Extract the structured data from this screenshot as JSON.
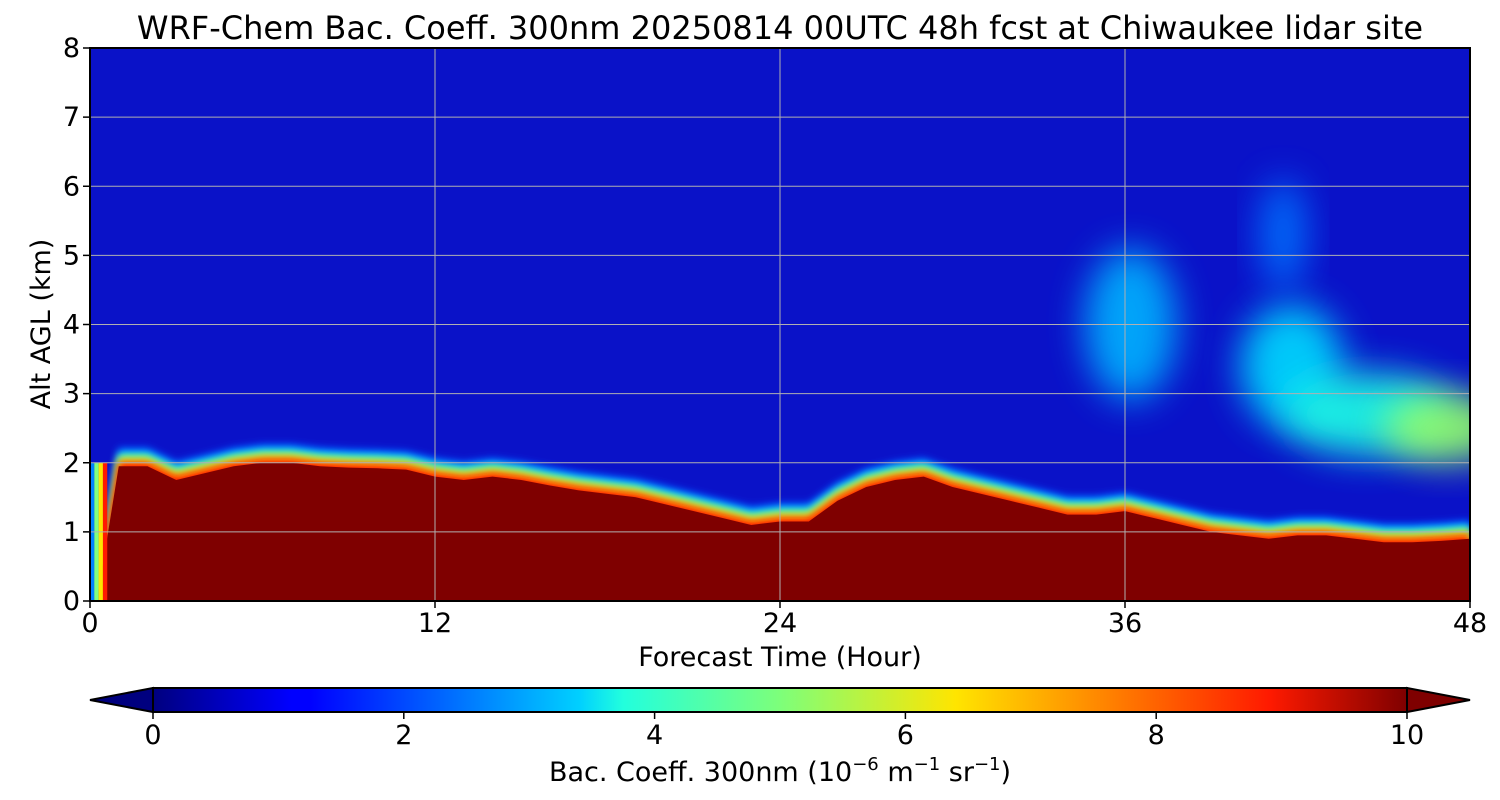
{
  "chart_data": {
    "type": "heatmap",
    "title": "WRF-Chem Bac. Coeff. 300nm  20250814 00UTC 48h fcst at Chiwaukee lidar site",
    "xlabel": "Forecast Time (Hour)",
    "ylabel": "Alt AGL (km)",
    "xlim": [
      0,
      48
    ],
    "ylim": [
      0,
      8
    ],
    "x_ticks": [
      "0",
      "12",
      "24",
      "36",
      "48"
    ],
    "y_ticks": [
      "0",
      "1",
      "2",
      "3",
      "4",
      "5",
      "6",
      "7",
      "8"
    ],
    "grid": true,
    "colormap": "jet",
    "colorbar": {
      "label_prefix": "Bac. Coeff. 300nm  (10",
      "label_exp1": "−6",
      "label_mid": " m",
      "label_exp2": "−1",
      "label_mid2": " sr",
      "label_exp3": "−1",
      "label_suffix": ")",
      "range": [
        0,
        10
      ],
      "ticks": [
        "0",
        "2",
        "4",
        "6",
        "8",
        "10"
      ],
      "extend": "both"
    },
    "boundary_layer_top_km": {
      "hours": [
        0.3,
        1,
        2,
        3,
        4,
        5,
        6,
        7,
        8,
        9,
        10,
        11,
        12,
        13,
        14,
        15,
        16,
        17,
        18,
        19,
        20,
        21,
        22,
        23,
        24,
        25,
        26,
        27,
        28,
        29,
        30,
        31,
        32,
        33,
        34,
        35,
        36,
        37,
        38,
        39,
        40,
        41,
        42,
        43,
        44,
        45,
        46,
        47,
        48
      ],
      "values": [
        0.2,
        2.0,
        2.0,
        1.8,
        1.9,
        2.0,
        2.05,
        2.05,
        2.0,
        1.98,
        1.97,
        1.95,
        1.85,
        1.8,
        1.85,
        1.8,
        1.72,
        1.65,
        1.6,
        1.55,
        1.45,
        1.35,
        1.25,
        1.15,
        1.2,
        1.2,
        1.5,
        1.7,
        1.8,
        1.85,
        1.7,
        1.6,
        1.5,
        1.4,
        1.3,
        1.3,
        1.35,
        1.25,
        1.15,
        1.05,
        1.0,
        0.95,
        1.0,
        1.0,
        0.95,
        0.9,
        0.9,
        0.92,
        0.95
      ]
    },
    "elevated_aerosol_layers": [
      {
        "x": 36.2,
        "y": 4.0,
        "dx": 1.6,
        "dy": 1.1,
        "value": 3.0
      },
      {
        "x": 41.8,
        "y": 3.4,
        "dx": 1.8,
        "dy": 0.9,
        "value": 3.4
      },
      {
        "x": 44.5,
        "y": 2.7,
        "dx": 3.0,
        "dy": 0.6,
        "value": 4.0
      },
      {
        "x": 47.2,
        "y": 2.5,
        "dx": 2.2,
        "dy": 0.5,
        "value": 5.2
      },
      {
        "x": 41.5,
        "y": 5.3,
        "dx": 0.8,
        "dy": 0.8,
        "value": 2.4
      }
    ]
  }
}
